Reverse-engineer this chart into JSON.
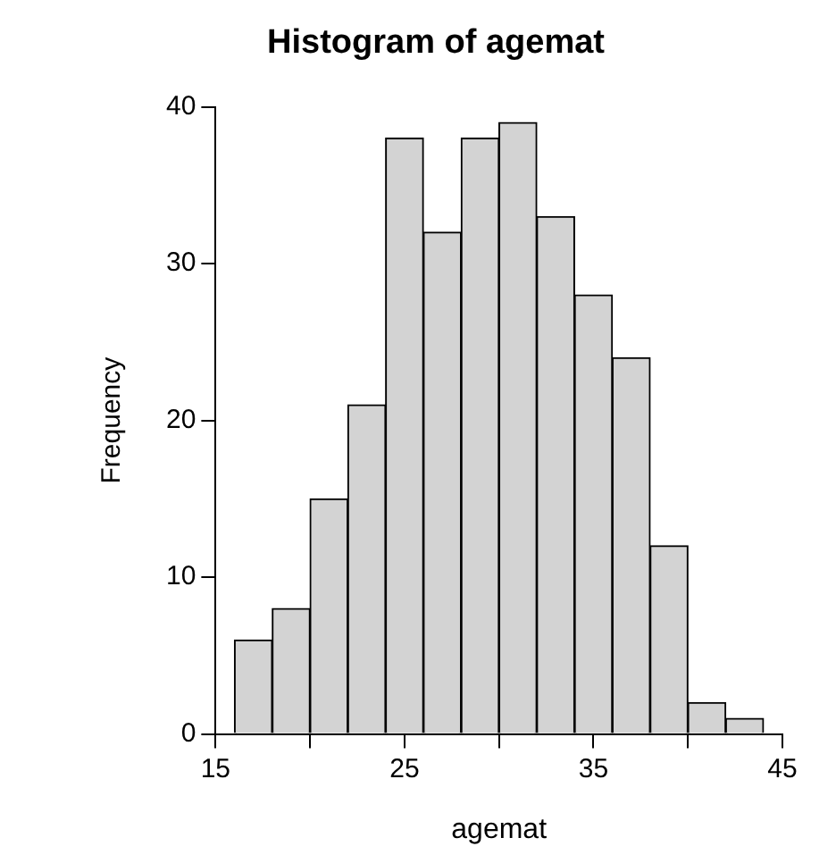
{
  "chart_data": {
    "type": "histogram",
    "title": "Histogram of agemat",
    "xlabel": "agemat",
    "ylabel": "Frequency",
    "bins": [
      16,
      18,
      20,
      22,
      24,
      26,
      28,
      30,
      32,
      34,
      36,
      38,
      40,
      42,
      44
    ],
    "values": [
      6,
      8,
      15,
      21,
      38,
      32,
      38,
      39,
      33,
      28,
      24,
      12,
      2,
      1
    ],
    "color": "#d3d3d3",
    "xlim": [
      15,
      45
    ],
    "xticks": [
      15,
      {
        "value": 20,
        "label": null
      },
      25,
      {
        "value": 30,
        "label": null
      },
      35,
      {
        "value": 40,
        "label": null
      },
      45
    ],
    "ylim": [
      0,
      40
    ],
    "yticks": [
      0,
      10,
      20,
      30,
      40
    ],
    "grid": false
  }
}
